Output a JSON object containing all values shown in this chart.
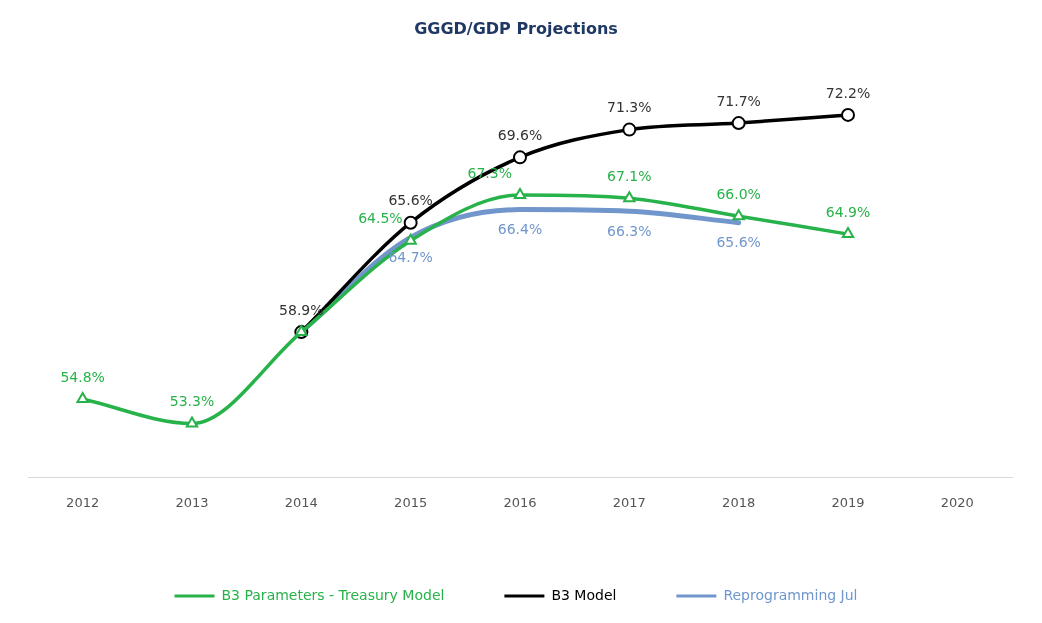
{
  "chart_data": {
    "type": "line",
    "title": "GGGD/GDP Projections",
    "categories": [
      "2012",
      "2013",
      "2014",
      "2015",
      "2016",
      "2017",
      "2018",
      "2019",
      "2020"
    ],
    "series": [
      {
        "name": "B3 Parameters - Treasury Model",
        "color": "#27b24a",
        "marker": "triangle",
        "values": [
          54.8,
          53.3,
          58.9,
          64.5,
          67.3,
          67.1,
          66.0,
          64.9,
          null
        ],
        "value_labels": [
          "54.8%",
          "53.3%",
          null,
          "64.5%",
          "67.3%",
          "67.1%",
          "66.0%",
          "64.9%",
          null
        ]
      },
      {
        "name": "B3 Model",
        "color": "#000000",
        "marker": "circle",
        "values": [
          null,
          null,
          58.9,
          65.6,
          69.6,
          71.3,
          71.7,
          72.2,
          null
        ],
        "value_labels": [
          null,
          null,
          "58.9%",
          "65.6%",
          "69.6%",
          "71.3%",
          "71.7%",
          "72.2%",
          null
        ]
      },
      {
        "name": "Reprogramming Jul",
        "color": "#7096cc",
        "marker": "none",
        "values": [
          null,
          null,
          58.9,
          64.7,
          66.4,
          66.3,
          65.6,
          null,
          null
        ],
        "value_labels": [
          null,
          null,
          null,
          "64.7%",
          "66.4%",
          "66.3%",
          "65.6%",
          null,
          null
        ]
      }
    ],
    "tick_labels": "x",
    "grid": false,
    "legend": "bottom"
  }
}
